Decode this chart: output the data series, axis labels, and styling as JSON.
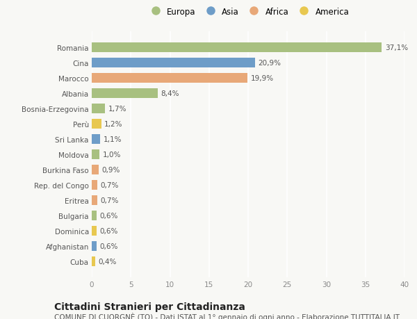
{
  "countries": [
    "Romania",
    "Cina",
    "Marocco",
    "Albania",
    "Bosnia-Erzegovina",
    "Perù",
    "Sri Lanka",
    "Moldova",
    "Burkina Faso",
    "Rep. del Congo",
    "Eritrea",
    "Bulgaria",
    "Dominica",
    "Afghanistan",
    "Cuba"
  ],
  "values": [
    37.1,
    20.9,
    19.9,
    8.4,
    1.7,
    1.2,
    1.1,
    1.0,
    0.9,
    0.7,
    0.7,
    0.6,
    0.6,
    0.6,
    0.4
  ],
  "labels": [
    "37,1%",
    "20,9%",
    "19,9%",
    "8,4%",
    "1,7%",
    "1,2%",
    "1,1%",
    "1,0%",
    "0,9%",
    "0,7%",
    "0,7%",
    "0,6%",
    "0,6%",
    "0,6%",
    "0,4%"
  ],
  "continents": [
    "Europa",
    "Asia",
    "Africa",
    "Europa",
    "Europa",
    "America",
    "Asia",
    "Europa",
    "Africa",
    "Africa",
    "Africa",
    "Europa",
    "America",
    "Asia",
    "America"
  ],
  "continent_colors": {
    "Europa": "#a8c080",
    "Asia": "#6e9dc8",
    "Africa": "#e8a878",
    "America": "#e8c850"
  },
  "legend_order": [
    "Europa",
    "Asia",
    "Africa",
    "America"
  ],
  "xlim": [
    0,
    40
  ],
  "xticks": [
    0,
    5,
    10,
    15,
    20,
    25,
    30,
    35,
    40
  ],
  "title": "Cittadini Stranieri per Cittadinanza",
  "subtitle": "COMUNE DI CUORGNÈ (TO) - Dati ISTAT al 1° gennaio di ogni anno - Elaborazione TUTTITALIA.IT",
  "bg_color": "#f8f8f5",
  "plot_bg_color": "#f8f8f5",
  "grid_color": "#ffffff",
  "bar_height": 0.65,
  "title_fontsize": 10,
  "subtitle_fontsize": 7.5,
  "label_fontsize": 7.5,
  "tick_fontsize": 7.5,
  "legend_fontsize": 8.5
}
